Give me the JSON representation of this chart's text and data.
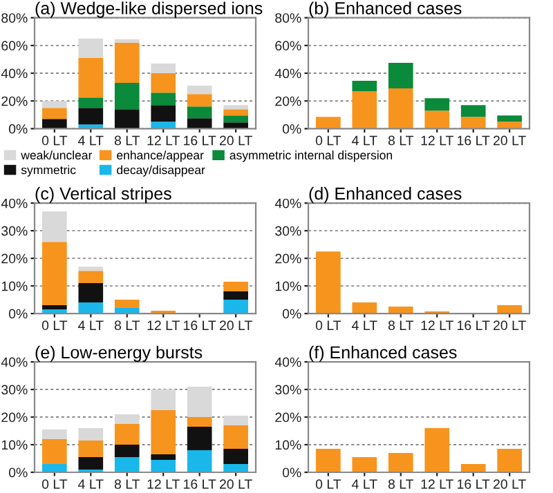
{
  "chart_data": [
    {
      "type": "bar",
      "title": "(a) Wedge-like dispersed ions",
      "stacked": true,
      "categories": [
        "0 LT",
        "4 LT",
        "8 LT",
        "12 LT",
        "16 LT",
        "20 LT"
      ],
      "ylim": [
        0,
        80
      ],
      "yticks": [
        {
          "value": 0,
          "label": "0%"
        },
        {
          "value": 20,
          "label": "20%"
        },
        {
          "value": 40,
          "label": "40%"
        },
        {
          "value": 60,
          "label": "60%"
        },
        {
          "value": 80,
          "label": "80%"
        }
      ],
      "grid": "y",
      "legend": "bottom",
      "series": [
        {
          "name": "decay/disappear",
          "color": "#1ab7ea",
          "values": [
            0,
            3,
            0,
            5,
            0,
            0
          ]
        },
        {
          "name": "symmetric",
          "color": "#111111",
          "values": [
            7,
            12,
            14,
            12,
            7.5,
            4.5
          ]
        },
        {
          "name": "asymmetric internal dispersion",
          "color": "#0a8a3a",
          "values": [
            0,
            7.5,
            19,
            9,
            8.5,
            5
          ]
        },
        {
          "name": "enhance/appear",
          "color": "#f7941d",
          "values": [
            8,
            28.5,
            29,
            14,
            9,
            4.5
          ]
        },
        {
          "name": "weak/unclear",
          "color": "#d9d9d9",
          "values": [
            5,
            14,
            2.5,
            7,
            6,
            3
          ]
        }
      ]
    },
    {
      "type": "bar",
      "title": "(b) Enhanced cases",
      "stacked": true,
      "categories": [
        "0 LT",
        "4 LT",
        "8 LT",
        "12 LT",
        "16 LT",
        "20 LT"
      ],
      "ylim": [
        0,
        80
      ],
      "yticks": [
        {
          "value": 0,
          "label": "0%"
        },
        {
          "value": 20,
          "label": "20%"
        },
        {
          "value": 40,
          "label": "40%"
        },
        {
          "value": 60,
          "label": "60%"
        },
        {
          "value": 80,
          "label": "80%"
        }
      ],
      "grid": "y",
      "series": [
        {
          "color": "#f7941d",
          "values": [
            8.5,
            27,
            29,
            13,
            8.5,
            5
          ]
        },
        {
          "color": "#0a8a3a",
          "values": [
            0,
            7.5,
            18.5,
            9,
            8.5,
            4.5
          ]
        }
      ]
    },
    {
      "type": "bar",
      "title": "(c) Vertical stripes",
      "stacked": true,
      "categories": [
        "0 LT",
        "4 LT",
        "8 LT",
        "12 LT",
        "16 LT",
        "20 LT"
      ],
      "ylim": [
        0,
        40
      ],
      "yticks": [
        {
          "value": 0,
          "label": "0%"
        },
        {
          "value": 10,
          "label": "10%"
        },
        {
          "value": 20,
          "label": "20%"
        },
        {
          "value": 30,
          "label": "30%"
        },
        {
          "value": 40,
          "label": "40%"
        }
      ],
      "grid": "y",
      "series": [
        {
          "color": "#1ab7ea",
          "values": [
            1.5,
            4,
            2,
            0,
            0,
            5
          ]
        },
        {
          "color": "#111111",
          "values": [
            1.5,
            7,
            0,
            0,
            0,
            3
          ]
        },
        {
          "color": "#f7941d",
          "values": [
            23,
            4.5,
            3,
            1,
            0,
            3.5
          ]
        },
        {
          "color": "#d9d9d9",
          "values": [
            11,
            1.5,
            0,
            0,
            0,
            null
          ]
        }
      ]
    },
    {
      "type": "bar",
      "title": "(d) Enhanced cases",
      "categories": [
        "0 LT",
        "4 LT",
        "8 LT",
        "12 LT",
        "16 LT",
        "20 LT"
      ],
      "ylim": [
        0,
        40
      ],
      "yticks": [
        {
          "value": 0,
          "label": "0%"
        },
        {
          "value": 10,
          "label": "10%"
        },
        {
          "value": 20,
          "label": "20%"
        },
        {
          "value": 30,
          "label": "30%"
        },
        {
          "value": 40,
          "label": "40%"
        }
      ],
      "grid": "y",
      "series": [
        {
          "color": "#f7941d",
          "values": [
            22.5,
            4,
            2.5,
            0.8,
            0,
            3
          ]
        }
      ]
    },
    {
      "type": "bar",
      "title": "(e) Low-energy bursts",
      "stacked": true,
      "categories": [
        "0 LT",
        "4 LT",
        "8 LT",
        "12 LT",
        "16 LT",
        "20 LT"
      ],
      "ylim": [
        0,
        40
      ],
      "yticks": [
        {
          "value": 0,
          "label": "0%"
        },
        {
          "value": 10,
          "label": "10%"
        },
        {
          "value": 20,
          "label": "20%"
        },
        {
          "value": 30,
          "label": "30%"
        },
        {
          "value": 40,
          "label": "40%"
        }
      ],
      "grid": "y",
      "series": [
        {
          "color": "#1ab7ea",
          "values": [
            3,
            1,
            5.5,
            4.5,
            8,
            3
          ]
        },
        {
          "color": "#111111",
          "values": [
            0,
            4.5,
            4.5,
            2,
            8.5,
            5.5
          ]
        },
        {
          "color": "#f7941d",
          "values": [
            9,
            6,
            7.5,
            16,
            3.5,
            8.5
          ]
        },
        {
          "color": "#d9d9d9",
          "values": [
            3.5,
            4.5,
            3.5,
            7.5,
            11,
            3.5
          ]
        }
      ]
    },
    {
      "type": "bar",
      "title": "(f) Enhanced cases",
      "categories": [
        "0 LT",
        "4 LT",
        "8 LT",
        "12 LT",
        "16 LT",
        "20 LT"
      ],
      "ylim": [
        0,
        40
      ],
      "yticks": [
        {
          "value": 0,
          "label": "0%"
        },
        {
          "value": 10,
          "label": "10%"
        },
        {
          "value": 20,
          "label": "20%"
        },
        {
          "value": 30,
          "label": "30%"
        },
        {
          "value": 40,
          "label": "40%"
        }
      ],
      "grid": "y",
      "series": [
        {
          "color": "#f7941d",
          "values": [
            8.5,
            5.5,
            7,
            16,
            3,
            8.5
          ]
        }
      ]
    }
  ]
}
